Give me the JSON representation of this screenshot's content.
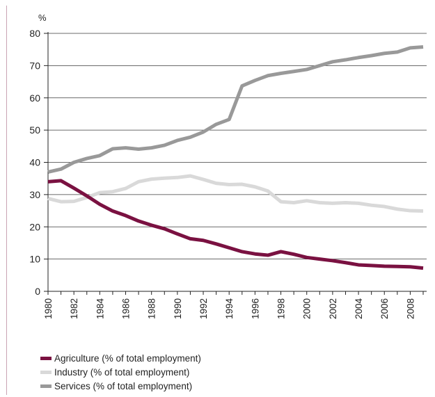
{
  "chart_data": {
    "type": "line",
    "unit_label": "%",
    "ylim": [
      0,
      80
    ],
    "yticks": [
      0,
      10,
      20,
      30,
      40,
      50,
      60,
      70,
      80
    ],
    "xlim": [
      1980,
      2009
    ],
    "xticks": [
      1980,
      1982,
      1984,
      1986,
      1988,
      1990,
      1992,
      1994,
      1996,
      1998,
      2000,
      2002,
      2004,
      2006,
      2008
    ],
    "grid": "horizontal",
    "legend_position": "bottom-left",
    "x": [
      1980,
      1981,
      1982,
      1983,
      1984,
      1985,
      1986,
      1987,
      1988,
      1989,
      1990,
      1991,
      1992,
      1993,
      1994,
      1995,
      1996,
      1997,
      1998,
      1999,
      2000,
      2001,
      2002,
      2003,
      2004,
      2005,
      2006,
      2007,
      2008,
      2009
    ],
    "series": [
      {
        "name": "Agriculture (% of total employment)",
        "color": "#7a1141",
        "values": [
          34.0,
          34.3,
          32.0,
          29.6,
          27.0,
          24.9,
          23.5,
          21.8,
          20.5,
          19.4,
          17.8,
          16.3,
          15.8,
          14.7,
          13.5,
          12.3,
          11.6,
          11.2,
          12.3,
          11.5,
          10.5,
          10.0,
          9.5,
          8.9,
          8.2,
          8.0,
          7.8,
          7.7,
          7.6,
          7.2
        ]
      },
      {
        "name": "Industry (% of total employment)",
        "color": "#d9d9d9",
        "values": [
          28.8,
          27.8,
          27.9,
          29.1,
          30.6,
          30.9,
          31.9,
          34.0,
          34.8,
          35.1,
          35.3,
          35.8,
          34.7,
          33.5,
          33.1,
          33.2,
          32.4,
          31.1,
          27.8,
          27.5,
          28.1,
          27.5,
          27.3,
          27.5,
          27.3,
          26.7,
          26.3,
          25.5,
          25.0,
          24.9
        ]
      },
      {
        "name": "Services (% of total employment)",
        "color": "#999999",
        "values": [
          37.0,
          37.9,
          40.0,
          41.2,
          42.1,
          44.2,
          44.5,
          44.1,
          44.5,
          45.3,
          46.8,
          47.8,
          49.4,
          51.8,
          53.3,
          63.7,
          65.4,
          66.9,
          67.6,
          68.2,
          68.8,
          70.0,
          71.2,
          71.8,
          72.5,
          73.1,
          73.8,
          74.2,
          75.5,
          75.8
        ]
      }
    ]
  }
}
